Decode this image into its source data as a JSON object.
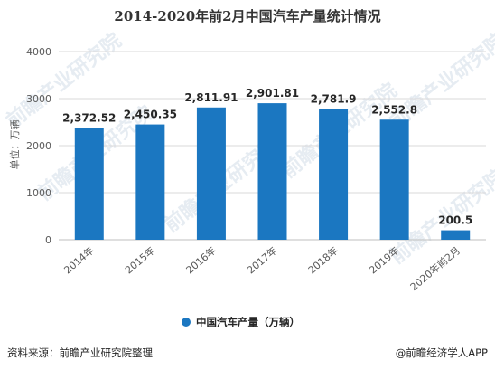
{
  "chart_data": {
    "type": "bar",
    "title": "2014-2020年前2月中国汽车产量统计情况",
    "ylabel": "单位：万辆",
    "ylim": [
      0,
      4000
    ],
    "yticks": [
      0,
      1000,
      2000,
      3000,
      4000
    ],
    "categories": [
      "2014年",
      "2015年",
      "2016年",
      "2017年",
      "2018年",
      "2019年",
      "2020年前2月"
    ],
    "series": [
      {
        "name": "中国汽车产量（万辆）",
        "values": [
          2372.52,
          2450.35,
          2811.91,
          2901.81,
          2781.9,
          2552.8,
          200.5
        ],
        "labels": [
          "2,372.52",
          "2,450.35",
          "2,811.91",
          "2,901.81",
          "2,781.9",
          "2,552.8",
          "200.5"
        ],
        "color": "#1b77c1"
      }
    ],
    "grid": true,
    "legend": "bottom-center"
  },
  "footer": {
    "source": "资料来源：前瞻产业研究院整理",
    "brand": "@前瞻经济学人APP"
  },
  "watermark": {
    "text": "前瞻产业研究院"
  }
}
